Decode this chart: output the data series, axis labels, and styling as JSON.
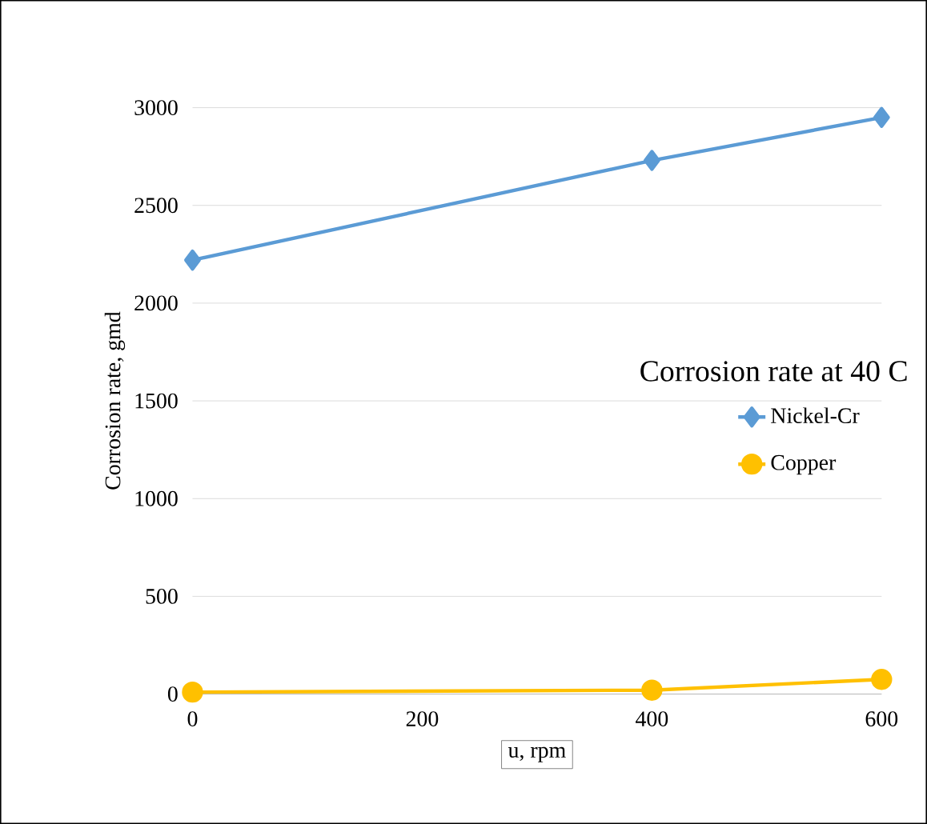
{
  "chart_data": {
    "type": "line",
    "xlabel": "u, rpm",
    "ylabel": "Corrosion rate, gmd",
    "legend_title": "Corrosion rate at 40 C",
    "x": [
      0,
      400,
      600
    ],
    "series": [
      {
        "name": "Nickel-Cr",
        "color": "#5b9bd5",
        "marker": "diamond",
        "values": [
          2220,
          2730,
          2950
        ]
      },
      {
        "name": "Copper",
        "color": "#ffc000",
        "marker": "circle",
        "values": [
          10,
          20,
          75
        ]
      }
    ],
    "xlim": [
      0,
      600
    ],
    "ylim": [
      0,
      3000
    ],
    "xticks": [
      0,
      200,
      400,
      600
    ],
    "yticks": [
      0,
      500,
      1000,
      1500,
      2000,
      2500,
      3000
    ],
    "grid": "y",
    "legend": "right",
    "line_style": "solid"
  }
}
